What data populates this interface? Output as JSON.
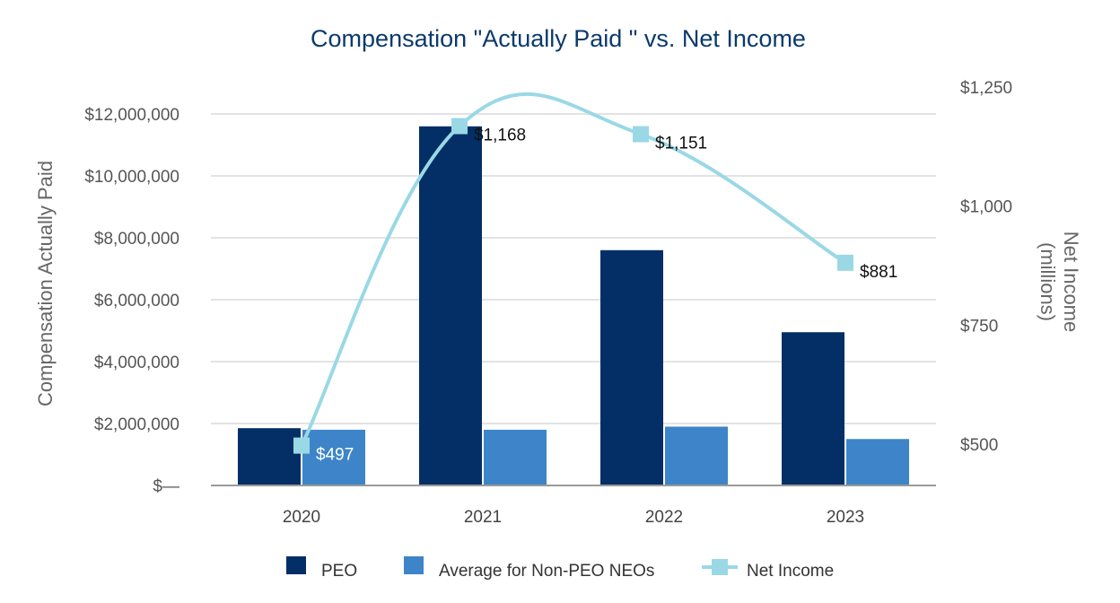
{
  "chart_data": {
    "type": "bar",
    "title": "Compensation \"Actually Paid \" vs. Net Income",
    "categories": [
      "2020",
      "2021",
      "2022",
      "2023"
    ],
    "ylabel": "Compensation Actually Paid",
    "y2label_line1": "Net Income",
    "y2label_line2": "(millions)",
    "ylim": [
      0,
      12000000
    ],
    "y2lim": [
      500,
      1250
    ],
    "y_ticks": [
      0,
      2000000,
      4000000,
      6000000,
      8000000,
      10000000,
      12000000
    ],
    "y_tick_labels": [
      "$—",
      "$2,000,000",
      "$4,000,000",
      "$6,000,000",
      "$8,000,000",
      "$10,000,000",
      "$12,000,000"
    ],
    "y2_ticks": [
      500,
      750,
      1000,
      1250
    ],
    "y2_tick_labels": [
      "$500",
      "$750",
      "$1,000",
      "$1,250"
    ],
    "grid": true,
    "legend_position": "bottom",
    "series": [
      {
        "name": "PEO",
        "type": "bar",
        "axis": "left",
        "color": "#042f66",
        "values": [
          1850000,
          11600000,
          7600000,
          4950000
        ]
      },
      {
        "name": "Average for Non-PEO NEOs",
        "type": "bar",
        "axis": "left",
        "color": "#3d85c8",
        "values": [
          1800000,
          1800000,
          1900000,
          1500000
        ]
      },
      {
        "name": "Net Income",
        "type": "line",
        "axis": "right",
        "color": "#9ad8e6",
        "values": [
          497,
          1168,
          1151,
          881
        ],
        "labels": [
          "$497",
          "$1,168",
          "$1,151",
          "$881"
        ]
      }
    ]
  }
}
